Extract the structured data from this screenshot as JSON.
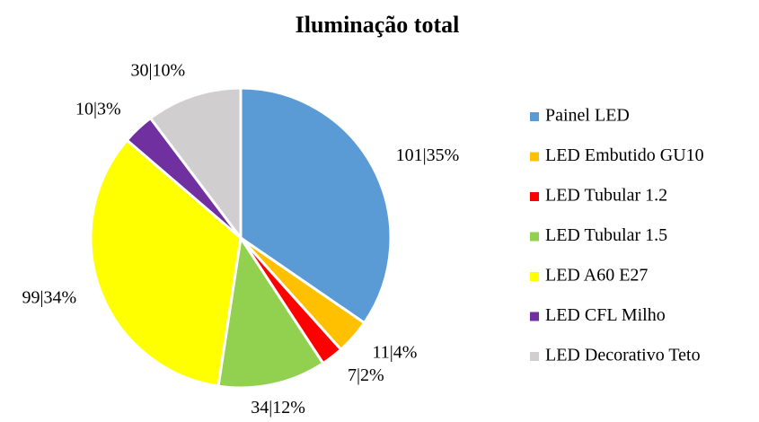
{
  "chart_data": {
    "type": "pie",
    "title": "Iluminação total",
    "categories": [
      "Painel LED",
      "LED Embutido GU10",
      "LED Tubular 1.2",
      "LED Tubular 1.5",
      "LED A60 E27",
      "LED CFL Milho",
      "LED Decorativo Teto"
    ],
    "values": [
      101,
      11,
      7,
      34,
      99,
      10,
      30
    ],
    "value_labels": [
      "101|35%",
      "11|4%",
      "7|2%",
      "34|12%",
      "99|34%",
      "10|3%",
      "30|10%"
    ],
    "colors": [
      "#5b9bd5",
      "#ffc000",
      "#ff0000",
      "#92d050",
      "#ffff00",
      "#7030a0",
      "#d0cece"
    ],
    "legend": "right"
  }
}
